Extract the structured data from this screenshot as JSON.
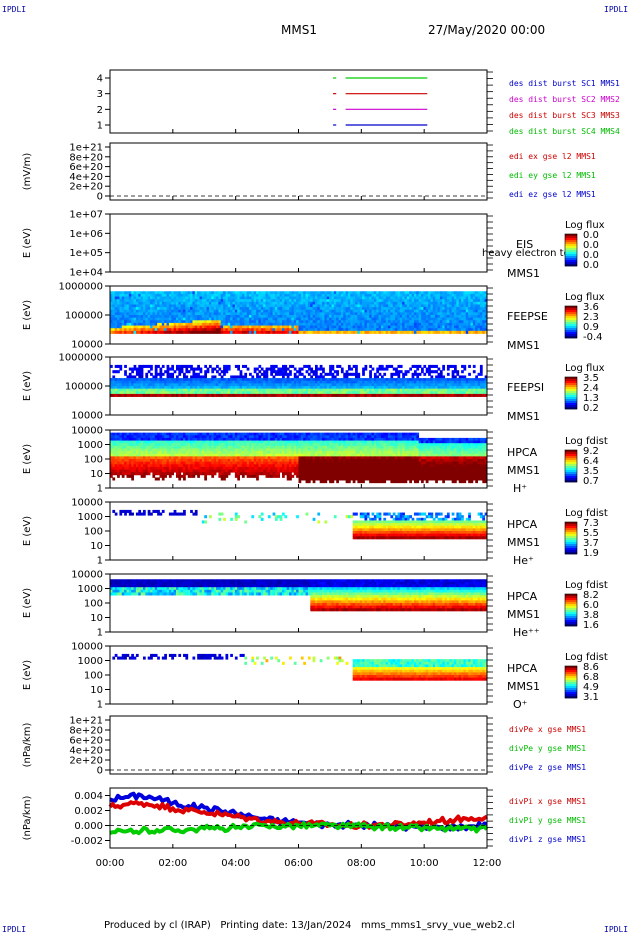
{
  "corner_label": "IPDLI",
  "header": {
    "mission": "MMS1",
    "datetime": "27/May/2020 00:00"
  },
  "footer": {
    "producer": "Produced by cl (IRAP)",
    "printing_date": "Printing date: 13/Jan/2024",
    "filename": "mms_mms1_srvy_vue_web2.cl"
  },
  "chart_data": {
    "type": "heatmap",
    "x_ticks": [
      "00:00",
      "02:00",
      "04:00",
      "06:00",
      "08:00",
      "10:00",
      "12:00"
    ],
    "xlim_hours": [
      0,
      12
    ],
    "panels": [
      {
        "id": "burst",
        "type": "timeline",
        "ylabel": "",
        "yticks": [
          "4",
          "3",
          "2",
          "1"
        ],
        "legend": [
          {
            "text": "des dist burst SC1 MMS1",
            "color": "#0000cc"
          },
          {
            "text": "des dist burst SC2 MMS2",
            "color": "#cc00cc"
          },
          {
            "text": "des dist burst SC3 MMS3",
            "color": "#cc0000"
          },
          {
            "text": "des dist burst SC4 MMS4",
            "color": "#00bb00"
          }
        ],
        "intervals": [
          {
            "level": 4,
            "color": "#00cc00",
            "spans": [
              [
                7.1,
                7.2
              ],
              [
                7.5,
                10.1
              ]
            ]
          },
          {
            "level": 3,
            "color": "#cc0000",
            "spans": [
              [
                7.1,
                7.2
              ],
              [
                7.5,
                10.1
              ]
            ]
          },
          {
            "level": 2,
            "color": "#cc00cc",
            "spans": [
              [
                7.1,
                7.2
              ],
              [
                7.5,
                10.1
              ]
            ]
          },
          {
            "level": 1,
            "color": "#0000cc",
            "spans": [
              [
                7.1,
                7.2
              ],
              [
                7.5,
                10.1
              ]
            ]
          }
        ]
      },
      {
        "id": "edi",
        "type": "line",
        "ylabel": "(mV/m)",
        "yticks": [
          "1e+21",
          "8e+20",
          "6e+20",
          "4e+20",
          "2e+20",
          "0"
        ],
        "legend": [
          {
            "text": "edi ex gse l2 MMS1",
            "color": "#cc0000"
          },
          {
            "text": "edi ey gse l2 MMS1",
            "color": "#00bb00"
          },
          {
            "text": "edi ez gse l2 MMS1",
            "color": "#0000cc"
          }
        ]
      },
      {
        "id": "eis",
        "type": "spectrogram",
        "ylabel": "E (eV)",
        "yticks": [
          "1e+07",
          "1e+06",
          "1e+05",
          "1e+04"
        ],
        "labels": [
          "EIS",
          "MMS1"
        ],
        "overlay": "heavy electron to",
        "colorbar": {
          "title": "Log flux",
          "ticks": [
            "0.0",
            "0.0",
            "0.0",
            "0.0"
          ]
        },
        "data_summary": "no data"
      },
      {
        "id": "feepse",
        "type": "spectrogram",
        "ylabel": "E (eV)",
        "yticks": [
          "1000000",
          "100000",
          "10000"
        ],
        "labels": [
          "FEEPSE",
          "MMS1"
        ],
        "colorbar": {
          "title": "Log flux",
          "ticks": [
            "3.6",
            "2.3",
            "0.9",
            "-0.4"
          ]
        }
      },
      {
        "id": "feepsi",
        "type": "spectrogram",
        "ylabel": "E (eV)",
        "yticks": [
          "1000000",
          "100000",
          "10000"
        ],
        "labels": [
          "FEEPSI",
          "MMS1"
        ],
        "colorbar": {
          "title": "Log flux",
          "ticks": [
            "3.5",
            "2.4",
            "1.3",
            "0.2"
          ]
        }
      },
      {
        "id": "hpca_h",
        "type": "spectrogram",
        "ylabel": "E (eV)",
        "yticks": [
          "10000",
          "1000",
          "100",
          "10",
          "1"
        ],
        "labels": [
          "HPCA",
          "MMS1",
          "H⁺"
        ],
        "colorbar": {
          "title": "Log fdist",
          "ticks": [
            "9.2",
            "6.4",
            "3.5",
            "0.7"
          ]
        }
      },
      {
        "id": "hpca_he",
        "type": "spectrogram",
        "ylabel": "E (eV)",
        "yticks": [
          "10000",
          "1000",
          "100",
          "10",
          "1"
        ],
        "labels": [
          "HPCA",
          "MMS1",
          "He⁺"
        ],
        "colorbar": {
          "title": "Log fdist",
          "ticks": [
            "7.3",
            "5.5",
            "3.7",
            "1.9"
          ]
        }
      },
      {
        "id": "hpca_hepp",
        "type": "spectrogram",
        "ylabel": "E (eV)",
        "yticks": [
          "10000",
          "1000",
          "100",
          "10",
          "1"
        ],
        "labels": [
          "HPCA",
          "MMS1",
          "He⁺⁺"
        ],
        "colorbar": {
          "title": "Log fdist",
          "ticks": [
            "8.2",
            "6.0",
            "3.8",
            "1.6"
          ]
        }
      },
      {
        "id": "hpca_o",
        "type": "spectrogram",
        "ylabel": "E (eV)",
        "yticks": [
          "10000",
          "1000",
          "100",
          "10",
          "1"
        ],
        "labels": [
          "HPCA",
          "MMS1",
          "O⁺"
        ],
        "colorbar": {
          "title": "Log fdist",
          "ticks": [
            "8.6",
            "6.8",
            "4.9",
            "3.1"
          ]
        }
      },
      {
        "id": "divpe",
        "type": "line",
        "ylabel": "(nPa/km)",
        "yticks": [
          "1e+21",
          "8e+20",
          "6e+20",
          "4e+20",
          "2e+20",
          "0"
        ],
        "legend": [
          {
            "text": "divPe x gse MMS1",
            "color": "#cc0000"
          },
          {
            "text": "divPe y gse MMS1",
            "color": "#00bb00"
          },
          {
            "text": "divPe z gse MMS1",
            "color": "#0000cc"
          }
        ]
      },
      {
        "id": "divpi",
        "type": "line",
        "ylabel": "(nPa/km)",
        "yticks": [
          "0.004",
          "0.002",
          "0.000",
          "-0.002"
        ],
        "ylim": [
          -0.003,
          0.005
        ],
        "legend": [
          {
            "text": "divPi x gse MMS1",
            "color": "#cc0000"
          },
          {
            "text": "divPi y gse MMS1",
            "color": "#00bb00"
          },
          {
            "text": "divPi z gse MMS1",
            "color": "#0000cc"
          }
        ],
        "series": [
          {
            "name": "divPi z gse MMS1",
            "color": "#0000dd",
            "x": [
              0,
              0.5,
              1,
              1.5,
              2,
              2.5,
              3,
              3.5,
              4,
              4.5,
              5,
              5.5,
              6,
              6.5,
              7,
              7.5,
              8,
              8.5,
              9,
              9.5,
              10,
              10.5,
              11,
              11.5,
              12
            ],
            "y": [
              0.0035,
              0.0038,
              0.004,
              0.0036,
              0.003,
              0.0026,
              0.0024,
              0.002,
              0.0016,
              0.0012,
              0.0008,
              0.0006,
              0.0004,
              0.0002,
              0.0001,
              0.0001,
              0.0,
              0.0,
              -0.0001,
              -0.0002,
              -0.0003,
              -0.0003,
              -0.0002,
              -0.0001,
              0.0002
            ]
          },
          {
            "name": "divPi x gse MMS1",
            "color": "#dd0000",
            "x": [
              0,
              0.5,
              1,
              1.5,
              2,
              2.5,
              3,
              3.5,
              4,
              4.5,
              5,
              5.5,
              6,
              6.5,
              7,
              7.5,
              8,
              8.5,
              9,
              9.5,
              10,
              10.5,
              11,
              11.5,
              12
            ],
            "y": [
              0.0025,
              0.0028,
              0.003,
              0.0027,
              0.0023,
              0.002,
              0.0018,
              0.0015,
              0.0012,
              0.0009,
              0.0006,
              0.0004,
              0.0003,
              0.0002,
              0.0001,
              0.0,
              0.0,
              0.0001,
              0.0001,
              0.0002,
              0.0004,
              0.0006,
              0.0008,
              0.001,
              0.0012
            ]
          },
          {
            "name": "divPi y gse MMS1",
            "color": "#00cc00",
            "x": [
              0,
              0.5,
              1,
              1.5,
              2,
              2.5,
              3,
              3.5,
              4,
              4.5,
              5,
              5.5,
              6,
              6.5,
              7,
              7.5,
              8,
              8.5,
              9,
              9.5,
              10,
              10.5,
              11,
              11.5,
              12
            ],
            "y": [
              -0.001,
              -0.0008,
              -0.0007,
              -0.0006,
              -0.0006,
              -0.0005,
              -0.0004,
              -0.0004,
              -0.0003,
              -0.0002,
              -0.0001,
              0.0,
              0.0,
              0.0,
              0.0,
              -0.0001,
              -0.0001,
              -0.0002,
              -0.0002,
              -0.0003,
              -0.0003,
              -0.0004,
              -0.0004,
              -0.0005,
              -0.0005
            ]
          }
        ]
      }
    ]
  }
}
